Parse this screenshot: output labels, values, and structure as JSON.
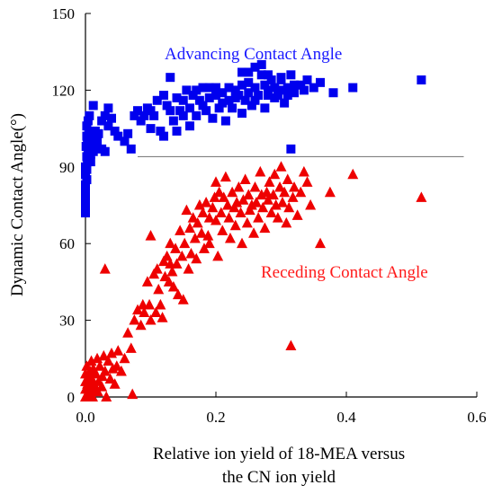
{
  "chart_data": {
    "type": "scatter",
    "title": "",
    "xlabel": [
      "Relative ion yield of 18-MEA versus",
      "the CN ion yield"
    ],
    "ylabel": "Dynamic Contact Angle(°)",
    "xlim": [
      0,
      0.6
    ],
    "ylim": [
      0,
      150
    ],
    "xticks": [
      "0.0",
      "0.2",
      "0.4",
      "0.6"
    ],
    "yticks": [
      "0",
      "30",
      "60",
      "90",
      "120",
      "150"
    ],
    "grid": false,
    "legend": "none",
    "annotations": [
      {
        "text": "Advancing Contact Angle",
        "color": "#1a1aff"
      },
      {
        "text": "Receding Contact Angle",
        "color": "#ff1a1a"
      }
    ],
    "reference_line": {
      "y": 94,
      "x_start": 0.08,
      "x_end": 0.58,
      "color": "#808080"
    },
    "series": [
      {
        "marker": "square",
        "color": "#0000ee",
        "points": [
          [
            0.0,
            72
          ],
          [
            0.0,
            75
          ],
          [
            0.0,
            78
          ],
          [
            0.0,
            80
          ],
          [
            0.0,
            83
          ],
          [
            0.002,
            85
          ],
          [
            0.0,
            87
          ],
          [
            0.002,
            89
          ],
          [
            0.0,
            90
          ],
          [
            0.003,
            92
          ],
          [
            0.002,
            94
          ],
          [
            0.004,
            96
          ],
          [
            0.001,
            98
          ],
          [
            0.003,
            100
          ],
          [
            0.002,
            102
          ],
          [
            0.005,
            104
          ],
          [
            0.002,
            106
          ],
          [
            0.004,
            108
          ],
          [
            0.006,
            110
          ],
          [
            0.008,
            92
          ],
          [
            0.008,
            95
          ],
          [
            0.008,
            99
          ],
          [
            0.01,
            101
          ],
          [
            0.012,
            96
          ],
          [
            0.015,
            98
          ],
          [
            0.015,
            104
          ],
          [
            0.018,
            100
          ],
          [
            0.02,
            103
          ],
          [
            0.025,
            108
          ],
          [
            0.025,
            97
          ],
          [
            0.012,
            114
          ],
          [
            0.03,
            96
          ],
          [
            0.03,
            110
          ],
          [
            0.035,
            106
          ],
          [
            0.035,
            113
          ],
          [
            0.04,
            109
          ],
          [
            0.045,
            104
          ],
          [
            0.05,
            102
          ],
          [
            0.06,
            100
          ],
          [
            0.065,
            103
          ],
          [
            0.07,
            97
          ],
          [
            0.075,
            110
          ],
          [
            0.08,
            112
          ],
          [
            0.085,
            108
          ],
          [
            0.09,
            110
          ],
          [
            0.095,
            113
          ],
          [
            0.1,
            105
          ],
          [
            0.1,
            112
          ],
          [
            0.105,
            110
          ],
          [
            0.11,
            116
          ],
          [
            0.115,
            104
          ],
          [
            0.12,
            102
          ],
          [
            0.12,
            118
          ],
          [
            0.125,
            114
          ],
          [
            0.13,
            125
          ],
          [
            0.13,
            112
          ],
          [
            0.135,
            108
          ],
          [
            0.14,
            104
          ],
          [
            0.14,
            117
          ],
          [
            0.145,
            112
          ],
          [
            0.15,
            110
          ],
          [
            0.15,
            116
          ],
          [
            0.155,
            120
          ],
          [
            0.16,
            113
          ],
          [
            0.16,
            106
          ],
          [
            0.165,
            118
          ],
          [
            0.17,
            120
          ],
          [
            0.17,
            110
          ],
          [
            0.175,
            116
          ],
          [
            0.18,
            121
          ],
          [
            0.18,
            114
          ],
          [
            0.185,
            112
          ],
          [
            0.19,
            121
          ],
          [
            0.19,
            117
          ],
          [
            0.195,
            109
          ],
          [
            0.2,
            118
          ],
          [
            0.2,
            121
          ],
          [
            0.205,
            113
          ],
          [
            0.21,
            119
          ],
          [
            0.21,
            115
          ],
          [
            0.215,
            108
          ],
          [
            0.22,
            116
          ],
          [
            0.22,
            121
          ],
          [
            0.225,
            113
          ],
          [
            0.23,
            120
          ],
          [
            0.23,
            117
          ],
          [
            0.235,
            118
          ],
          [
            0.24,
            111
          ],
          [
            0.24,
            122
          ],
          [
            0.245,
            116
          ],
          [
            0.25,
            119
          ],
          [
            0.25,
            123
          ],
          [
            0.255,
            114
          ],
          [
            0.26,
            116
          ],
          [
            0.26,
            121
          ],
          [
            0.265,
            118
          ],
          [
            0.27,
            126
          ],
          [
            0.27,
            130
          ],
          [
            0.275,
            122
          ],
          [
            0.275,
            113
          ],
          [
            0.28,
            118
          ],
          [
            0.28,
            120
          ],
          [
            0.285,
            124
          ],
          [
            0.29,
            117
          ],
          [
            0.29,
            121
          ],
          [
            0.295,
            118
          ],
          [
            0.3,
            124
          ],
          [
            0.3,
            120
          ],
          [
            0.305,
            115
          ],
          [
            0.31,
            121
          ],
          [
            0.31,
            118
          ],
          [
            0.315,
            126
          ],
          [
            0.32,
            122
          ],
          [
            0.32,
            119
          ],
          [
            0.33,
            122
          ],
          [
            0.335,
            120
          ],
          [
            0.34,
            124
          ],
          [
            0.35,
            121
          ],
          [
            0.36,
            123
          ],
          [
            0.38,
            119
          ],
          [
            0.41,
            121
          ],
          [
            0.515,
            124
          ],
          [
            0.315,
            97
          ],
          [
            0.26,
            129
          ],
          [
            0.25,
            127
          ],
          [
            0.24,
            127
          ],
          [
            0.28,
            126
          ],
          [
            0.3,
            125
          ]
        ]
      },
      {
        "marker": "triangle",
        "color": "#ee0000",
        "points": [
          [
            0.0,
            0
          ],
          [
            0.0,
            3
          ],
          [
            0.0,
            6
          ],
          [
            0.0,
            9
          ],
          [
            0.002,
            12
          ],
          [
            0.003,
            5
          ],
          [
            0.004,
            1
          ],
          [
            0.005,
            8
          ],
          [
            0.006,
            2
          ],
          [
            0.007,
            10
          ],
          [
            0.008,
            4
          ],
          [
            0.009,
            14
          ],
          [
            0.01,
            7
          ],
          [
            0.011,
            0
          ],
          [
            0.012,
            11
          ],
          [
            0.013,
            5
          ],
          [
            0.015,
            3
          ],
          [
            0.016,
            9
          ],
          [
            0.018,
            15
          ],
          [
            0.019,
            2
          ],
          [
            0.02,
            6
          ],
          [
            0.022,
            12
          ],
          [
            0.025,
            4
          ],
          [
            0.026,
            8
          ],
          [
            0.028,
            16
          ],
          [
            0.03,
            10
          ],
          [
            0.03,
            50
          ],
          [
            0.032,
            0
          ],
          [
            0.035,
            14
          ],
          [
            0.038,
            7
          ],
          [
            0.04,
            17
          ],
          [
            0.042,
            11
          ],
          [
            0.045,
            5
          ],
          [
            0.048,
            12
          ],
          [
            0.05,
            18
          ],
          [
            0.055,
            10
          ],
          [
            0.06,
            15
          ],
          [
            0.065,
            25
          ],
          [
            0.07,
            19
          ],
          [
            0.072,
            1
          ],
          [
            0.075,
            30
          ],
          [
            0.08,
            34
          ],
          [
            0.085,
            28
          ],
          [
            0.088,
            36
          ],
          [
            0.09,
            33
          ],
          [
            0.095,
            45
          ],
          [
            0.098,
            36
          ],
          [
            0.1,
            30
          ],
          [
            0.1,
            63
          ],
          [
            0.105,
            48
          ],
          [
            0.108,
            33
          ],
          [
            0.11,
            50
          ],
          [
            0.112,
            42
          ],
          [
            0.115,
            36
          ],
          [
            0.118,
            31
          ],
          [
            0.12,
            53
          ],
          [
            0.122,
            47
          ],
          [
            0.125,
            55
          ],
          [
            0.128,
            45
          ],
          [
            0.13,
            52
          ],
          [
            0.13,
            60
          ],
          [
            0.133,
            49
          ],
          [
            0.135,
            43
          ],
          [
            0.138,
            58
          ],
          [
            0.14,
            52
          ],
          [
            0.142,
            40
          ],
          [
            0.145,
            65
          ],
          [
            0.148,
            55
          ],
          [
            0.15,
            38
          ],
          [
            0.152,
            60
          ],
          [
            0.155,
            73
          ],
          [
            0.158,
            50
          ],
          [
            0.16,
            66
          ],
          [
            0.162,
            56
          ],
          [
            0.165,
            70
          ],
          [
            0.168,
            62
          ],
          [
            0.17,
            54
          ],
          [
            0.172,
            68
          ],
          [
            0.175,
            75
          ],
          [
            0.178,
            64
          ],
          [
            0.18,
            72
          ],
          [
            0.182,
            58
          ],
          [
            0.185,
            76
          ],
          [
            0.188,
            63
          ],
          [
            0.19,
            70
          ],
          [
            0.19,
            60
          ],
          [
            0.195,
            74
          ],
          [
            0.198,
            78
          ],
          [
            0.2,
            69
          ],
          [
            0.2,
            84
          ],
          [
            0.203,
            55
          ],
          [
            0.205,
            80
          ],
          [
            0.208,
            72
          ],
          [
            0.21,
            65
          ],
          [
            0.212,
            78
          ],
          [
            0.215,
            86
          ],
          [
            0.218,
            75
          ],
          [
            0.22,
            70
          ],
          [
            0.222,
            62
          ],
          [
            0.225,
            80
          ],
          [
            0.228,
            74
          ],
          [
            0.23,
            67
          ],
          [
            0.232,
            76
          ],
          [
            0.235,
            82
          ],
          [
            0.238,
            72
          ],
          [
            0.24,
            60
          ],
          [
            0.242,
            77
          ],
          [
            0.245,
            85
          ],
          [
            0.248,
            68
          ],
          [
            0.25,
            79
          ],
          [
            0.252,
            73
          ],
          [
            0.255,
            75
          ],
          [
            0.258,
            64
          ],
          [
            0.26,
            82
          ],
          [
            0.262,
            76
          ],
          [
            0.265,
            70
          ],
          [
            0.268,
            88
          ],
          [
            0.27,
            79
          ],
          [
            0.272,
            74
          ],
          [
            0.275,
            66
          ],
          [
            0.278,
            80
          ],
          [
            0.28,
            77
          ],
          [
            0.282,
            84
          ],
          [
            0.285,
            72
          ],
          [
            0.288,
            79
          ],
          [
            0.29,
            87
          ],
          [
            0.292,
            75
          ],
          [
            0.295,
            70
          ],
          [
            0.298,
            82
          ],
          [
            0.3,
            90
          ],
          [
            0.302,
            76
          ],
          [
            0.305,
            80
          ],
          [
            0.308,
            68
          ],
          [
            0.31,
            85
          ],
          [
            0.312,
            74
          ],
          [
            0.315,
            20
          ],
          [
            0.318,
            78
          ],
          [
            0.32,
            82
          ],
          [
            0.325,
            71
          ],
          [
            0.33,
            80
          ],
          [
            0.335,
            88
          ],
          [
            0.34,
            84
          ],
          [
            0.345,
            75
          ],
          [
            0.36,
            60
          ],
          [
            0.375,
            80
          ],
          [
            0.41,
            87
          ],
          [
            0.515,
            78
          ]
        ]
      }
    ]
  }
}
